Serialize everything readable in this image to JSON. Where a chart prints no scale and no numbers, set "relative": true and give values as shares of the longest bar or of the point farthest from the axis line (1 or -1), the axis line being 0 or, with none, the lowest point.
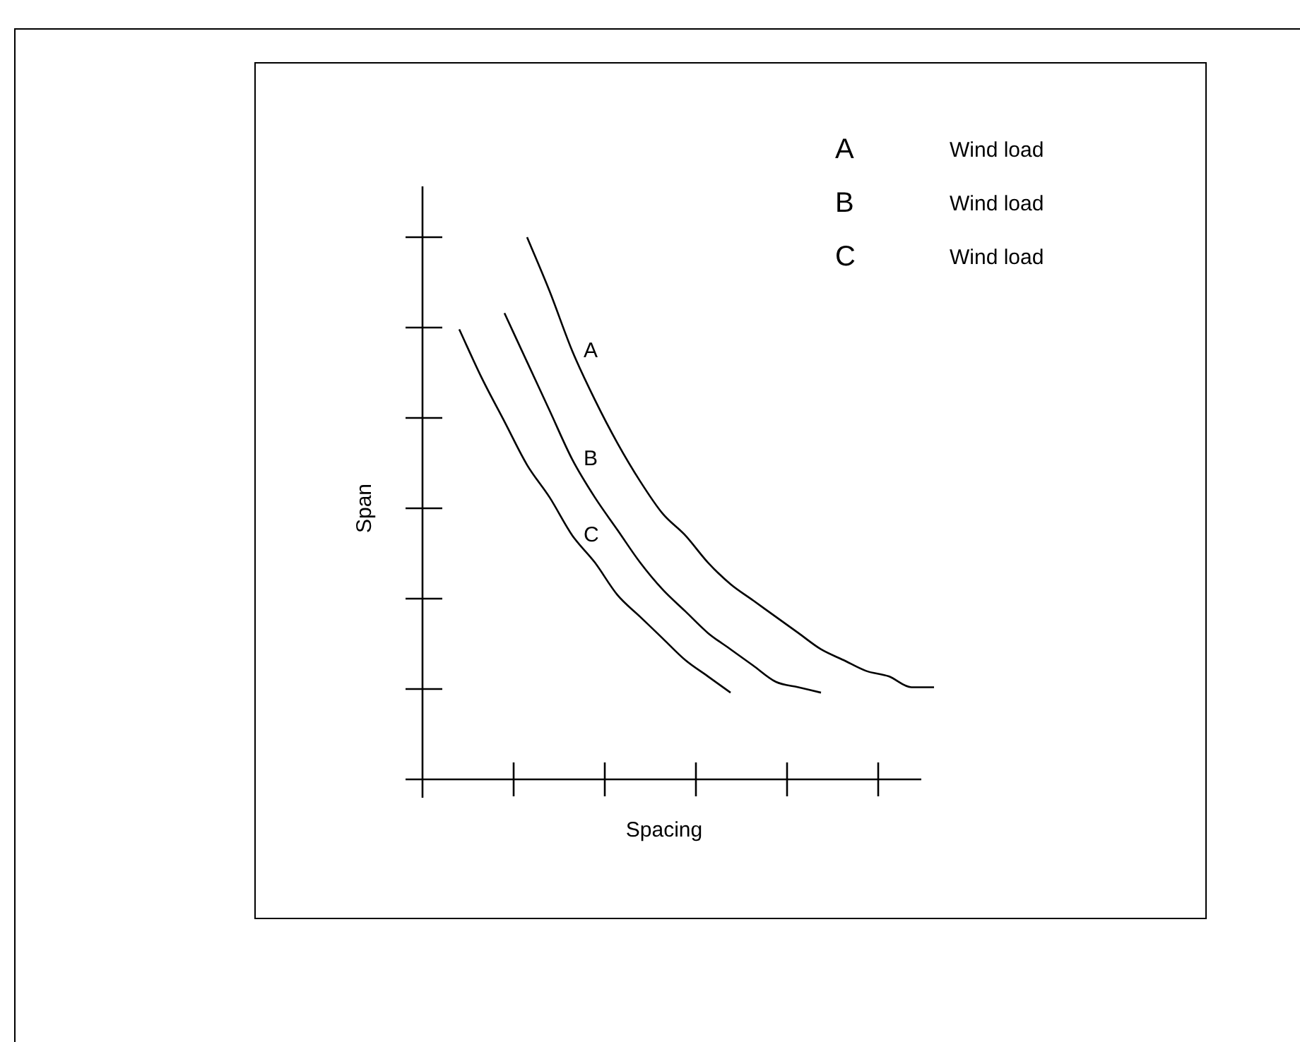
{
  "chart_data": {
    "type": "line",
    "relative": true,
    "xlabel": "Spacing",
    "ylabel": "Span",
    "legend": false,
    "marker": "none",
    "grid": false,
    "categories": [
      null,
      null,
      null,
      null,
      null,
      null,
      null,
      null,
      null,
      null,
      null,
      null,
      null,
      null,
      null,
      null,
      null,
      null,
      null,
      null,
      null,
      null
    ],
    "annotations": [
      "A",
      "Wind load",
      "B",
      "Wind load",
      "C",
      "Wind load"
    ],
    "series": [
      {
        "name": "A",
        "color": "#000000",
        "values": [
          null,
          null,
          null,
          1,
          0.9,
          0.79,
          0.7,
          0.62,
          0.55,
          0.49,
          0.45,
          0.4,
          0.36,
          0.33,
          0.3,
          0.27,
          0.24,
          0.22,
          0.2,
          0.19,
          0.17,
          0.17
        ]
      },
      {
        "name": "B",
        "color": "#000000",
        "values": [
          null,
          null,
          0.86,
          0.77,
          0.68,
          0.59,
          0.52,
          0.46,
          0.4,
          0.35,
          0.31,
          0.27,
          0.24,
          0.21,
          0.18,
          0.17,
          0.16,
          null,
          null,
          null,
          null,
          null
        ]
      },
      {
        "name": "C",
        "color": "#000000",
        "values": [
          0.83,
          0.74,
          0.66,
          0.58,
          0.52,
          0.45,
          0.4,
          0.34,
          0.3,
          0.26,
          0.22,
          0.19,
          0.16,
          null,
          null,
          null,
          null,
          null,
          null,
          null,
          null,
          null
        ]
      }
    ]
  }
}
